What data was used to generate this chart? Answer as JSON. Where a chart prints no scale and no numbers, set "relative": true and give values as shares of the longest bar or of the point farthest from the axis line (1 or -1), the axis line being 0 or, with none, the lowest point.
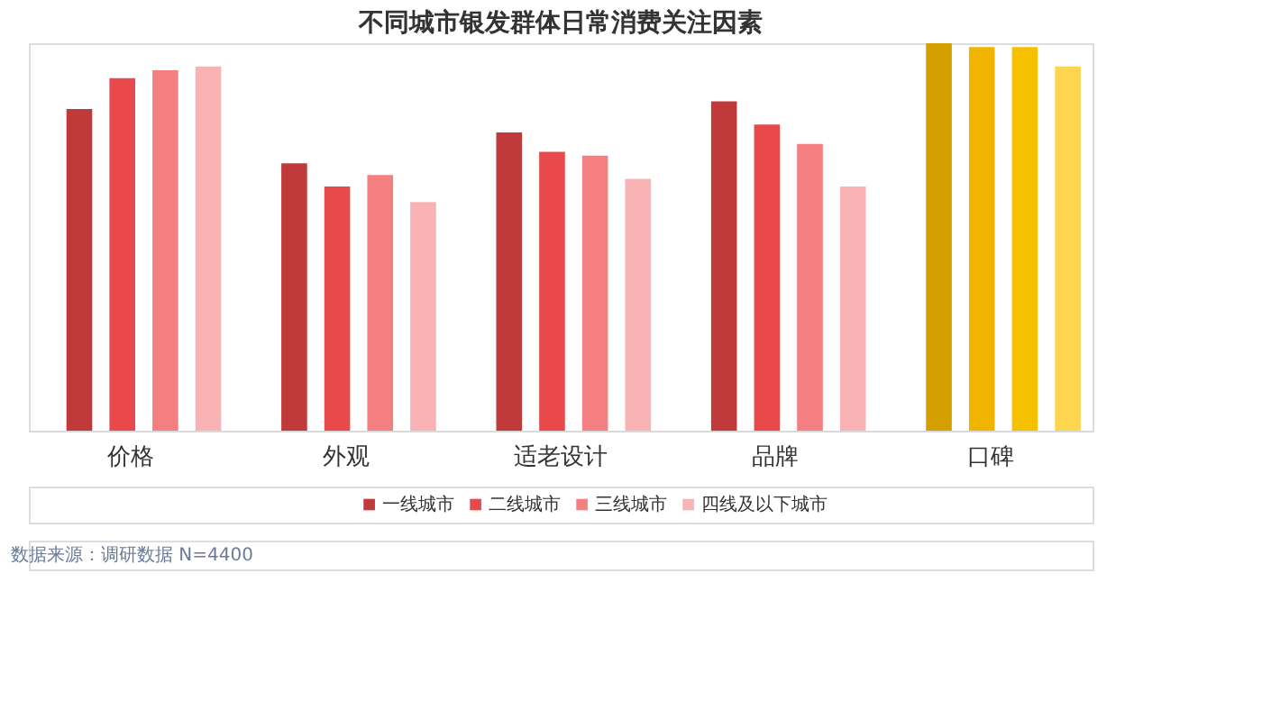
{
  "chart_data": {
    "type": "bar",
    "title": "不同城市银发群体日常消费关注因素",
    "categories": [
      "价格",
      "外观",
      "适老设计",
      "品牌",
      "口碑"
    ],
    "relative": true,
    "grid": false,
    "legend": "bottom",
    "series": [
      {
        "name": "一线城市",
        "color": "#c0393b",
        "colors": [
          "#c0393b",
          "#c0393b",
          "#c0393b",
          "#c0393b",
          "#d4a000"
        ],
        "values": [
          0.83,
          0.69,
          0.77,
          0.85,
          1.0
        ]
      },
      {
        "name": "二线城市",
        "color": "#e84a4c",
        "colors": [
          "#e84a4c",
          "#e84a4c",
          "#e84a4c",
          "#e84a4c",
          "#f0b400"
        ],
        "values": [
          0.91,
          0.63,
          0.72,
          0.79,
          0.99
        ]
      },
      {
        "name": "三线城市",
        "color": "#f47f80",
        "colors": [
          "#f47f80",
          "#f47f80",
          "#f47f80",
          "#f47f80",
          "#f5c000"
        ],
        "values": [
          0.93,
          0.66,
          0.71,
          0.74,
          0.99
        ]
      },
      {
        "name": "四线及以下城市",
        "color": "#f9b3b4",
        "colors": [
          "#f9b3b4",
          "#f9b3b4",
          "#f9b3b4",
          "#f9b3b4",
          "#ffd54f"
        ],
        "values": [
          0.94,
          0.59,
          0.65,
          0.63,
          0.94
        ]
      }
    ],
    "annotations": [
      "数据来源：调研数据 N=4400"
    ]
  }
}
